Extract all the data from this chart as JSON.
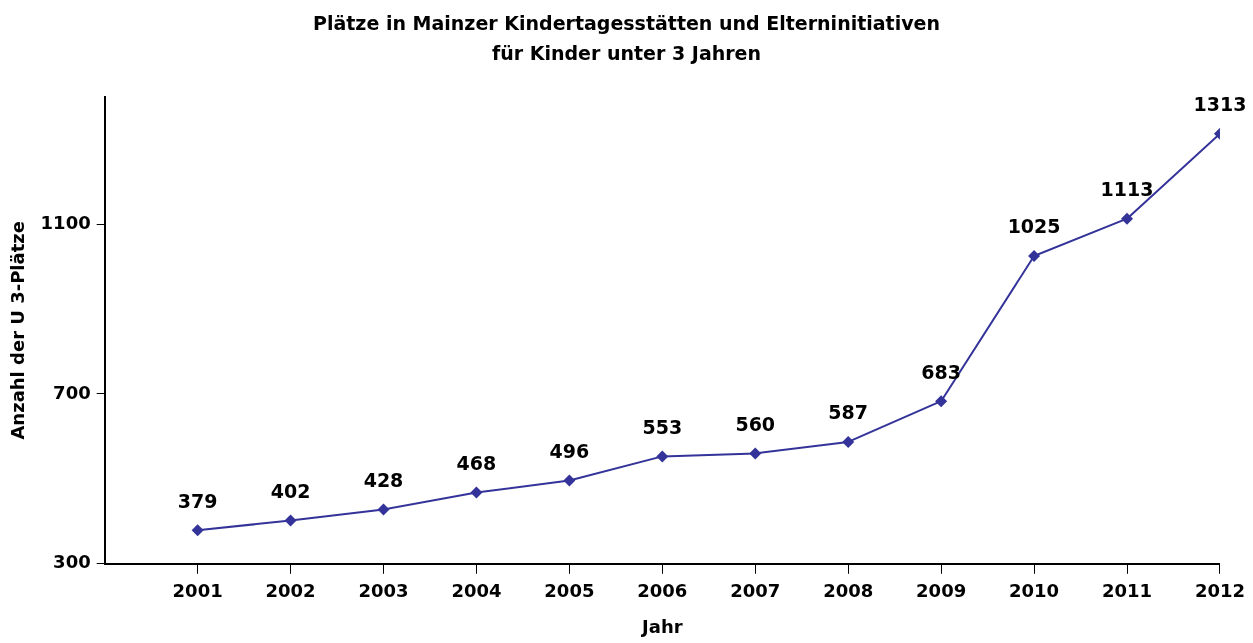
{
  "chart_data": {
    "type": "line",
    "title": "Plätze in Mainzer Kindertagesstätten und Elterninitiativen\nfür Kinder unter 3 Jahren",
    "xlabel": "Jahr",
    "ylabel": "Anzahl der U 3-Plätze",
    "x": [
      2001,
      2002,
      2003,
      2004,
      2005,
      2006,
      2007,
      2008,
      2009,
      2010,
      2011,
      2012
    ],
    "series": [
      {
        "color": "#333399",
        "values": [
          379,
          402,
          428,
          468,
          496,
          553,
          560,
          587,
          683,
          1025,
          1113,
          1313
        ]
      }
    ],
    "xlim": [
      2000,
      2012
    ],
    "xticks": [
      2001,
      2002,
      2003,
      2004,
      2005,
      2006,
      2007,
      2008,
      2009,
      2010,
      2011,
      2012
    ],
    "ylim": [
      300,
      1400
    ],
    "yticks": [
      300,
      700,
      1100
    ],
    "data_labels": true,
    "grid": false,
    "legend": false,
    "marker": "diamond",
    "line_style": "solid"
  }
}
